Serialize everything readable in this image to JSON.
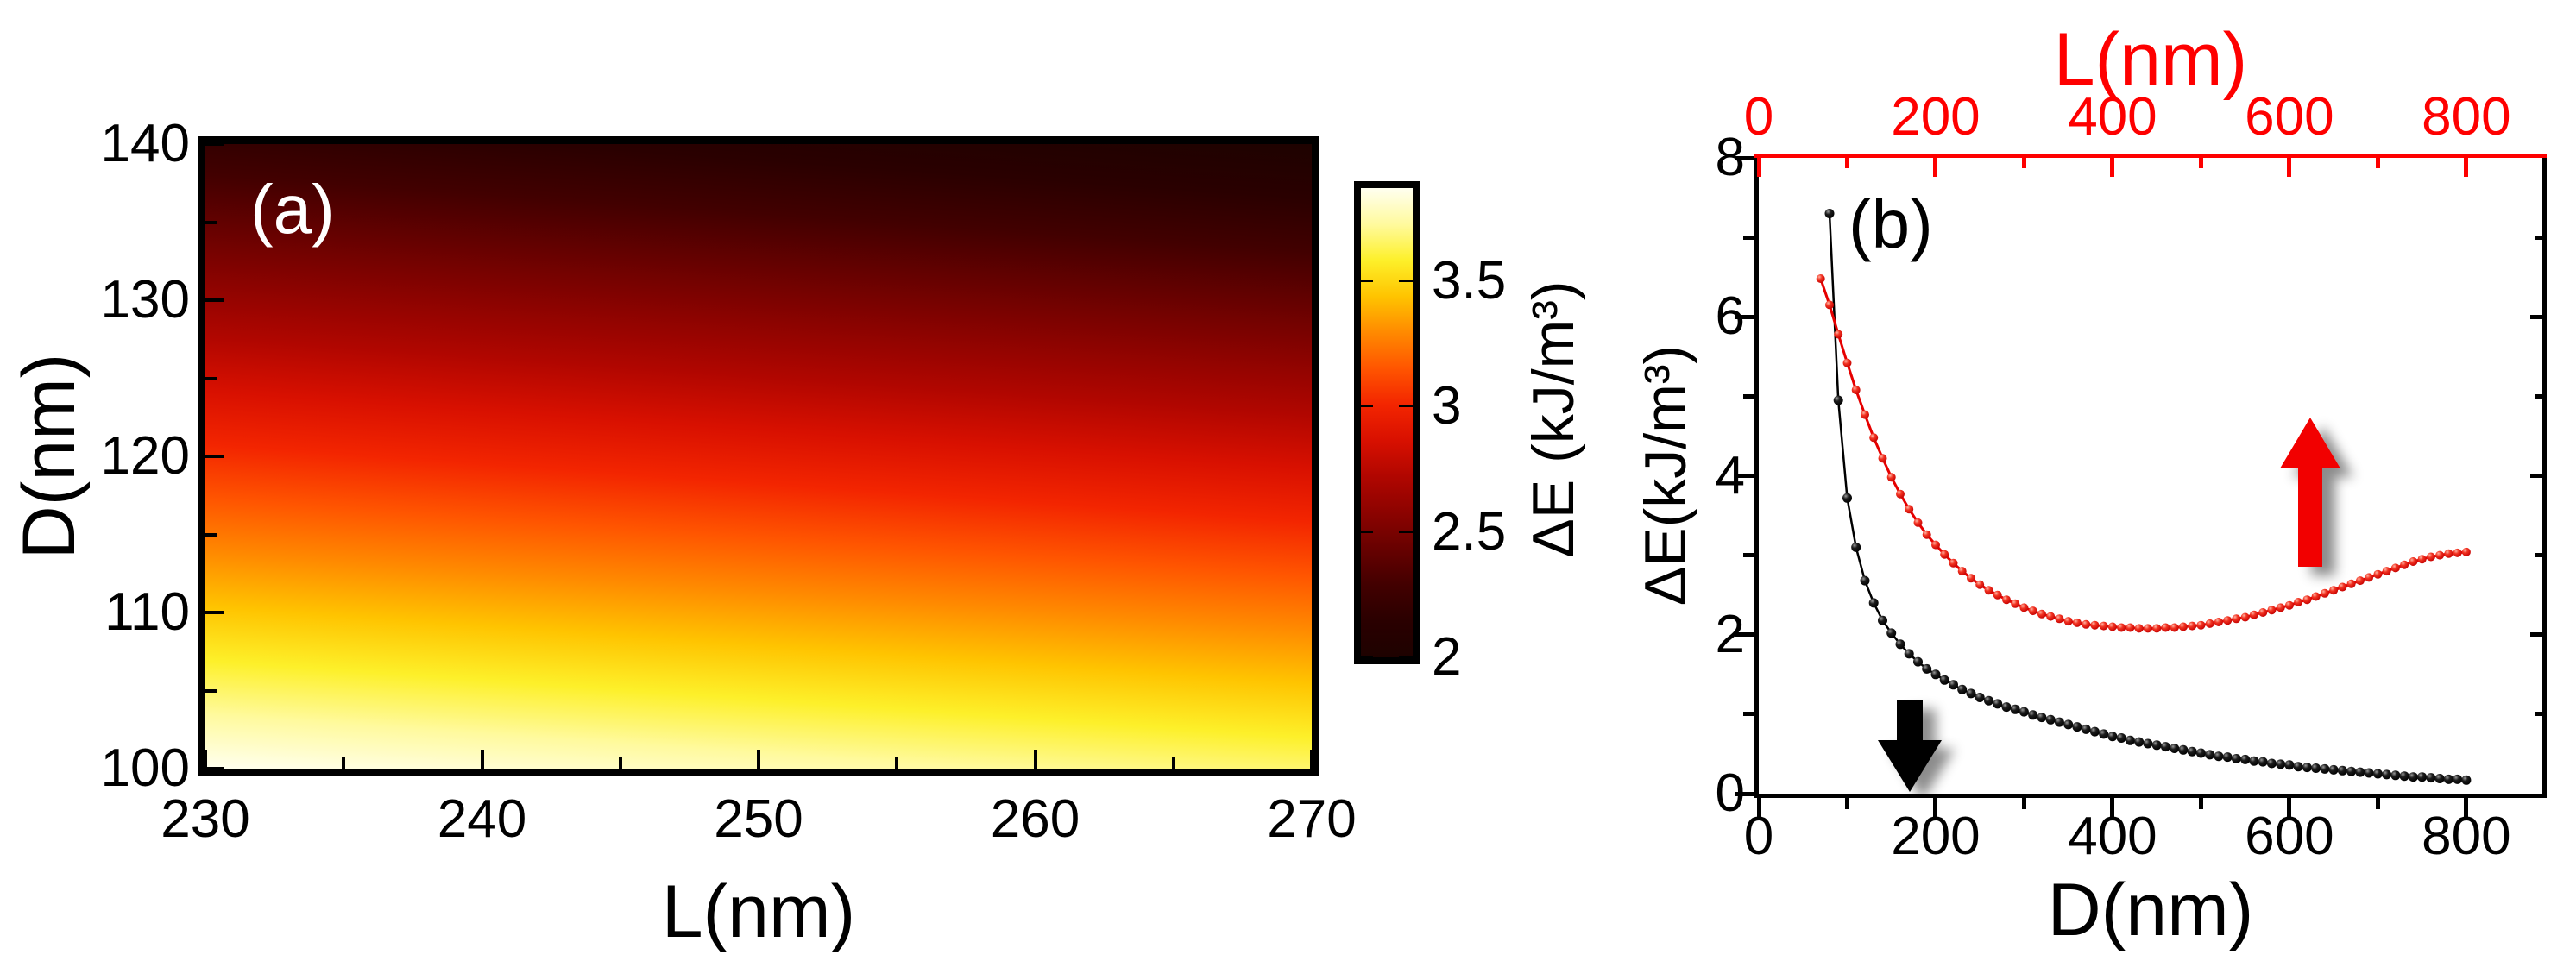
{
  "panel_a": {
    "label": "(a)",
    "x_axis": {
      "title": "L(nm)",
      "range": [
        230,
        270
      ],
      "major_ticks": [
        230,
        240,
        250,
        260,
        270
      ],
      "minor_ticks": [
        235,
        245,
        255,
        265
      ]
    },
    "y_axis": {
      "title": "D(nm)",
      "range": [
        100,
        140
      ],
      "major_ticks": [
        140,
        130,
        120,
        110,
        100
      ],
      "minor_ticks": [
        105,
        115,
        125,
        135
      ]
    },
    "colorbar": {
      "title": "ΔE (kJ/m³)",
      "range": [
        2.0,
        3.87
      ],
      "major_ticks": [
        3.5,
        3,
        2.5,
        2
      ],
      "palette_low_to_high": [
        "#1e0200",
        "#2a0000",
        "#420000",
        "#670100",
        "#8c0300",
        "#b00600",
        "#d81000",
        "#f32500",
        "#ff5500",
        "#ff8a00",
        "#ffc400",
        "#fdf02a",
        "#fffa9e",
        "#fffff0"
      ]
    }
  },
  "panel_b": {
    "label": "(b)",
    "x_axis_bottom": {
      "title": "D(nm)",
      "color": "#000000",
      "range": [
        0,
        886
      ],
      "major_ticks": [
        0,
        200,
        400,
        600,
        800
      ],
      "minor_ticks": [
        100,
        300,
        500,
        700
      ]
    },
    "x_axis_top": {
      "title": "L(nm)",
      "color": "#fe0000",
      "range": [
        0,
        886
      ],
      "major_ticks": [
        0,
        200,
        400,
        600,
        800
      ],
      "minor_ticks": [
        100,
        300,
        500,
        700
      ]
    },
    "y_axis": {
      "title": "ΔE(kJ/m³)",
      "range": [
        0,
        8
      ],
      "major_ticks": [
        0,
        2,
        4,
        6,
        8
      ],
      "minor_ticks": [
        1,
        3,
        5,
        7
      ]
    },
    "annotations": [
      {
        "name": "black-down-arrow",
        "color": "#000000",
        "direction": "down",
        "meaning": "black curve reads on bottom D(nm) axis"
      },
      {
        "name": "red-up-arrow",
        "color": "#f20000",
        "direction": "up",
        "meaning": "red curve reads on top L(nm) axis"
      }
    ]
  },
  "chart_data": [
    {
      "type": "heatmap",
      "title": "(a)",
      "xlabel": "L(nm)",
      "ylabel": "D(nm)",
      "zlabel": "ΔE (kJ/m³)",
      "xlim": [
        230,
        270
      ],
      "ylim": [
        100,
        140
      ],
      "color_range": [
        2.0,
        3.87
      ],
      "x": [
        230,
        240,
        250,
        260,
        270
      ],
      "y": [
        100,
        105,
        110,
        115,
        120,
        125,
        130,
        135,
        140
      ],
      "values_rows_by_y": [
        [
          3.82,
          3.8,
          3.77,
          3.75,
          3.72
        ],
        [
          3.59,
          3.57,
          3.54,
          3.52,
          3.49
        ],
        [
          3.37,
          3.34,
          3.32,
          3.29,
          3.27
        ],
        [
          3.14,
          3.11,
          3.09,
          3.06,
          3.04
        ],
        [
          2.91,
          2.89,
          2.86,
          2.84,
          2.81
        ],
        [
          2.68,
          2.66,
          2.63,
          2.61,
          2.58
        ],
        [
          2.46,
          2.43,
          2.41,
          2.38,
          2.36
        ],
        [
          2.23,
          2.2,
          2.18,
          2.15,
          2.13
        ],
        [
          2.0,
          1.98,
          1.95,
          1.93,
          1.9
        ]
      ],
      "note": "ΔE decreases from ~3.8 (white/yellow) at D=100 to ~2.0 (near black) at D=140, nearly independent of L"
    },
    {
      "type": "line",
      "title": "(b)",
      "xlabel_bottom": "D(nm)",
      "xlabel_top": "L(nm)",
      "ylabel": "ΔE(kJ/m³)",
      "xlim": [
        0,
        886
      ],
      "ylim": [
        0,
        8
      ],
      "series": [
        {
          "name": "ΔE vs D",
          "axis": "bottom",
          "color": "#000000",
          "marker": "sphere",
          "x_start": 80,
          "x_step": 10,
          "values": [
            7.3,
            4.95,
            3.72,
            3.1,
            2.68,
            2.4,
            2.18,
            2.02,
            1.88,
            1.76,
            1.66,
            1.57,
            1.5,
            1.43,
            1.37,
            1.31,
            1.26,
            1.21,
            1.17,
            1.13,
            1.09,
            1.06,
            1.03,
            0.99,
            0.96,
            0.93,
            0.9,
            0.87,
            0.84,
            0.81,
            0.78,
            0.75,
            0.72,
            0.7,
            0.67,
            0.65,
            0.63,
            0.61,
            0.59,
            0.57,
            0.55,
            0.53,
            0.51,
            0.49,
            0.47,
            0.46,
            0.44,
            0.43,
            0.41,
            0.4,
            0.38,
            0.37,
            0.36,
            0.34,
            0.33,
            0.32,
            0.31,
            0.3,
            0.29,
            0.28,
            0.27,
            0.26,
            0.25,
            0.24,
            0.23,
            0.22,
            0.21,
            0.21,
            0.2,
            0.19,
            0.18,
            0.18,
            0.17
          ]
        },
        {
          "name": "ΔE vs L",
          "axis": "top",
          "color": "#e60000",
          "marker": "sphere",
          "x_start": 70,
          "x_step": 10,
          "values": [
            6.48,
            6.15,
            5.78,
            5.42,
            5.08,
            4.77,
            4.48,
            4.22,
            3.98,
            3.77,
            3.58,
            3.41,
            3.26,
            3.13,
            3.01,
            2.9,
            2.8,
            2.71,
            2.63,
            2.56,
            2.5,
            2.44,
            2.39,
            2.34,
            2.3,
            2.26,
            2.23,
            2.2,
            2.17,
            2.15,
            2.13,
            2.12,
            2.11,
            2.1,
            2.09,
            2.09,
            2.08,
            2.08,
            2.08,
            2.09,
            2.09,
            2.1,
            2.11,
            2.12,
            2.14,
            2.16,
            2.18,
            2.2,
            2.22,
            2.25,
            2.28,
            2.31,
            2.34,
            2.37,
            2.41,
            2.44,
            2.48,
            2.52,
            2.56,
            2.6,
            2.64,
            2.68,
            2.72,
            2.76,
            2.8,
            2.84,
            2.88,
            2.92,
            2.95,
            2.98,
            3.0,
            3.02,
            3.03,
            3.04
          ]
        }
      ]
    }
  ]
}
